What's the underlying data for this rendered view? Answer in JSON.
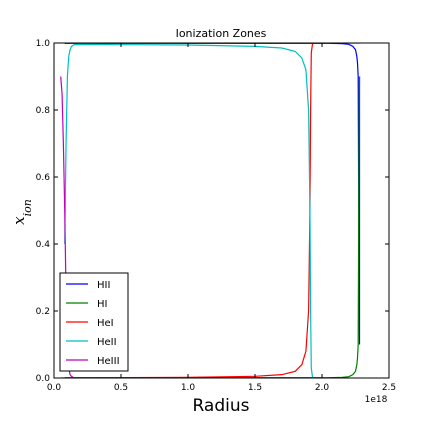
{
  "chart_data": {
    "type": "line",
    "title": "Ionization Zones",
    "xlabel": "Radius",
    "ylabel": "x_ion",
    "ylabel_parts": {
      "base": "x",
      "sub": "ion"
    },
    "x_offset_label": "1e18",
    "xlim": [
      0,
      2.5
    ],
    "ylim": [
      0,
      1.0
    ],
    "xticks": [
      0.0,
      0.5,
      1.0,
      1.5,
      2.0,
      2.5
    ],
    "xtick_labels": [
      "0.0",
      "0.5",
      "1.0",
      "1.5",
      "2.0",
      "2.5"
    ],
    "yticks": [
      0.0,
      0.2,
      0.4,
      0.6,
      0.8,
      1.0
    ],
    "ytick_labels": [
      "0.0",
      "0.2",
      "0.4",
      "0.6",
      "0.8",
      "1.0"
    ],
    "legend_position": "lower-left",
    "series": [
      {
        "name": "HII",
        "color": "#0000ff",
        "x": [
          0.08,
          0.5,
          1.0,
          1.5,
          1.9,
          2.05,
          2.15,
          2.2,
          2.23,
          2.25,
          2.26,
          2.265,
          2.27,
          2.272,
          2.275,
          2.278,
          2.28,
          2.28,
          2.28
        ],
        "y": [
          0.999,
          0.999,
          0.999,
          0.999,
          0.999,
          0.999,
          0.998,
          0.996,
          0.99,
          0.98,
          0.96,
          0.94,
          0.9,
          0.7,
          0.4,
          0.15,
          0.1,
          0.5,
          0.9
        ]
      },
      {
        "name": "HI",
        "color": "#008000",
        "x": [
          0.08,
          0.5,
          1.0,
          1.5,
          1.9,
          2.05,
          2.15,
          2.2,
          2.23,
          2.25,
          2.26,
          2.265,
          2.27,
          2.272,
          2.275,
          2.278,
          2.28
        ],
        "y": [
          0.001,
          0.001,
          0.001,
          0.001,
          0.001,
          0.001,
          0.002,
          0.004,
          0.01,
          0.02,
          0.04,
          0.06,
          0.1,
          0.3,
          0.6,
          0.85,
          0.9
        ]
      },
      {
        "name": "HeI",
        "color": "#ff0000",
        "x": [
          0.05,
          0.5,
          1.0,
          1.5,
          1.7,
          1.8,
          1.85,
          1.88,
          1.9,
          1.91,
          1.915,
          1.92,
          1.93,
          2.0,
          2.28
        ],
        "y": [
          0.0,
          0.001,
          0.002,
          0.005,
          0.01,
          0.02,
          0.04,
          0.08,
          0.2,
          0.5,
          0.8,
          0.97,
          1.0,
          1.0,
          1.0
        ]
      },
      {
        "name": "HeII",
        "color": "#00bfbf",
        "x": [
          0.08,
          0.09,
          0.1,
          0.11,
          0.12,
          0.13,
          0.15,
          0.2,
          0.5,
          1.0,
          1.5,
          1.7,
          1.8,
          1.85,
          1.88,
          1.9,
          1.91,
          1.915,
          1.92,
          1.93
        ],
        "y": [
          0.4,
          0.7,
          0.9,
          0.96,
          0.98,
          0.99,
          0.995,
          0.996,
          0.995,
          0.994,
          0.99,
          0.985,
          0.975,
          0.955,
          0.92,
          0.8,
          0.5,
          0.2,
          0.03,
          0.0
        ]
      },
      {
        "name": "HeIII",
        "color": "#bf00bf",
        "x": [
          0.05,
          0.06,
          0.07,
          0.08,
          0.09,
          0.1,
          0.11,
          0.12,
          0.13,
          0.15,
          0.5,
          1.0,
          1.5,
          2.0
        ],
        "y": [
          0.9,
          0.85,
          0.7,
          0.5,
          0.25,
          0.08,
          0.03,
          0.01,
          0.005,
          0.0,
          0.0,
          0.0,
          0.0,
          0.0
        ]
      }
    ]
  }
}
